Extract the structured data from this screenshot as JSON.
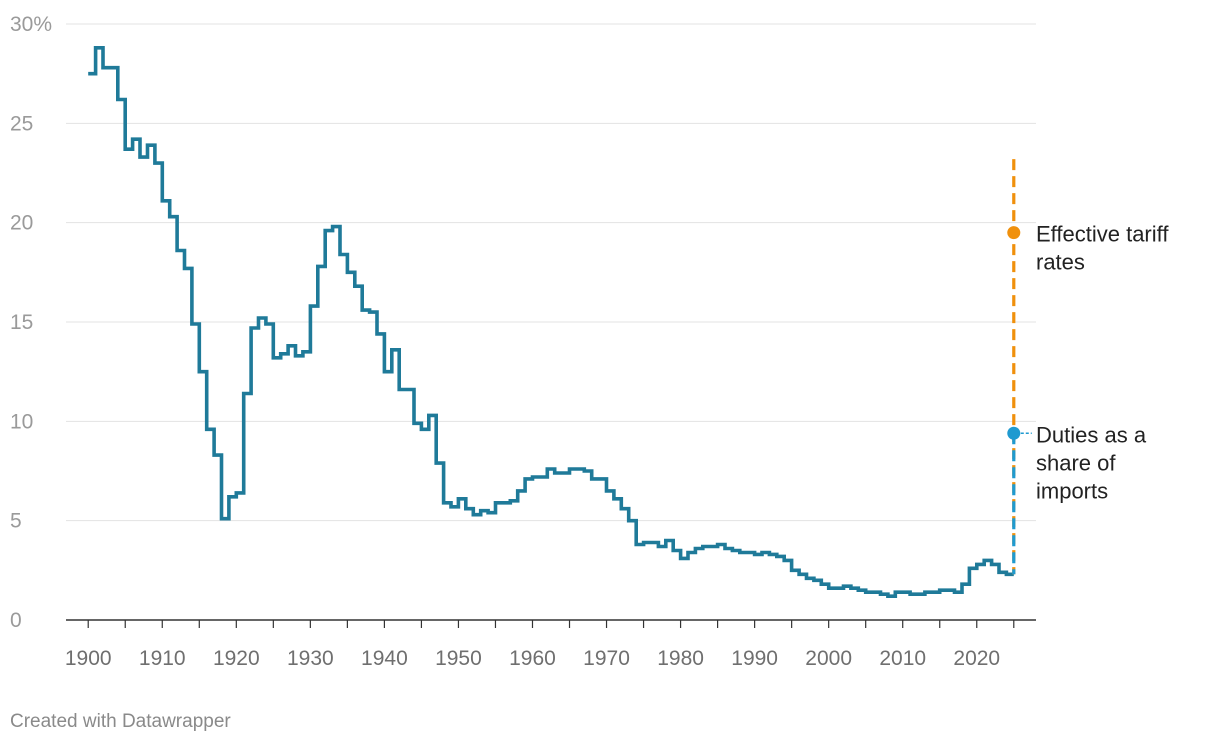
{
  "chart_data": {
    "type": "line",
    "step": true,
    "x_range": [
      1897,
      2028
    ],
    "ylim": [
      0,
      30
    ],
    "y_ticks": [
      {
        "value": 0,
        "label": "0"
      },
      {
        "value": 5,
        "label": "5"
      },
      {
        "value": 10,
        "label": "10"
      },
      {
        "value": 15,
        "label": "15"
      },
      {
        "value": 20,
        "label": "20"
      },
      {
        "value": 25,
        "label": "25"
      },
      {
        "value": 30,
        "label": "30%"
      }
    ],
    "x_ticks": [
      "1900",
      "1910",
      "1920",
      "1930",
      "1940",
      "1950",
      "1960",
      "1970",
      "1980",
      "1990",
      "2000",
      "2010",
      "2020"
    ],
    "grid": true,
    "series": [
      {
        "name": "Duties as a share of imports",
        "color": "#1f7a99",
        "x": [
          1900,
          1901,
          1902,
          1903,
          1904,
          1905,
          1906,
          1907,
          1908,
          1909,
          1910,
          1911,
          1912,
          1913,
          1914,
          1915,
          1916,
          1917,
          1918,
          1919,
          1920,
          1921,
          1922,
          1923,
          1924,
          1925,
          1926,
          1927,
          1928,
          1929,
          1930,
          1931,
          1932,
          1933,
          1934,
          1935,
          1936,
          1937,
          1938,
          1939,
          1940,
          1941,
          1942,
          1943,
          1944,
          1945,
          1946,
          1947,
          1948,
          1949,
          1950,
          1951,
          1952,
          1953,
          1954,
          1955,
          1956,
          1957,
          1958,
          1959,
          1960,
          1961,
          1962,
          1963,
          1964,
          1965,
          1966,
          1967,
          1968,
          1969,
          1970,
          1971,
          1972,
          1973,
          1974,
          1975,
          1976,
          1977,
          1978,
          1979,
          1980,
          1981,
          1982,
          1983,
          1984,
          1985,
          1986,
          1987,
          1988,
          1989,
          1990,
          1991,
          1992,
          1993,
          1994,
          1995,
          1996,
          1997,
          1998,
          1999,
          2000,
          2001,
          2002,
          2003,
          2004,
          2005,
          2006,
          2007,
          2008,
          2009,
          2010,
          2011,
          2012,
          2013,
          2014,
          2015,
          2016,
          2017,
          2018,
          2019,
          2020,
          2021,
          2022,
          2023,
          2024
        ],
        "values": [
          27.5,
          28.8,
          27.8,
          27.8,
          26.2,
          23.7,
          24.2,
          23.3,
          23.9,
          23.0,
          21.1,
          20.3,
          18.6,
          17.7,
          14.9,
          12.5,
          9.6,
          8.3,
          5.1,
          6.2,
          6.4,
          11.4,
          14.7,
          15.2,
          14.9,
          13.2,
          13.4,
          13.8,
          13.3,
          13.5,
          15.8,
          17.8,
          19.6,
          19.8,
          18.4,
          17.5,
          16.8,
          15.6,
          15.5,
          14.4,
          12.5,
          13.6,
          11.6,
          11.6,
          9.9,
          9.6,
          10.3,
          7.9,
          5.9,
          5.7,
          6.1,
          5.6,
          5.3,
          5.5,
          5.4,
          5.9,
          5.9,
          6.0,
          6.5,
          7.1,
          7.2,
          7.2,
          7.6,
          7.4,
          7.4,
          7.6,
          7.6,
          7.5,
          7.1,
          7.1,
          6.5,
          6.1,
          5.6,
          5.0,
          3.8,
          3.9,
          3.9,
          3.7,
          4.0,
          3.5,
          3.1,
          3.4,
          3.6,
          3.7,
          3.7,
          3.8,
          3.6,
          3.5,
          3.4,
          3.4,
          3.3,
          3.4,
          3.3,
          3.2,
          3.0,
          2.5,
          2.3,
          2.1,
          2.0,
          1.8,
          1.6,
          1.6,
          1.7,
          1.6,
          1.5,
          1.4,
          1.4,
          1.3,
          1.2,
          1.4,
          1.4,
          1.3,
          1.3,
          1.4,
          1.4,
          1.5,
          1.5,
          1.4,
          1.8,
          2.6,
          2.8,
          3.0,
          2.8,
          2.4,
          2.3
        ]
      }
    ],
    "projections": [
      {
        "name": "Effective tariff rates",
        "label_lines": [
          "Effective tariff",
          "rates"
        ],
        "color": "#f0900c",
        "x": 2025,
        "y_top": 23.2,
        "y_bottom": 2.3,
        "y_point": 19.5
      },
      {
        "name": "Duties as a share of imports",
        "label_lines": [
          "Duties as a",
          "share of",
          "imports"
        ],
        "color": "#1f9ad0",
        "x": 2025,
        "y_top": 9.4,
        "y_bottom": 2.3,
        "y_point": 9.4
      }
    ]
  },
  "credit": "Created with Datawrapper"
}
